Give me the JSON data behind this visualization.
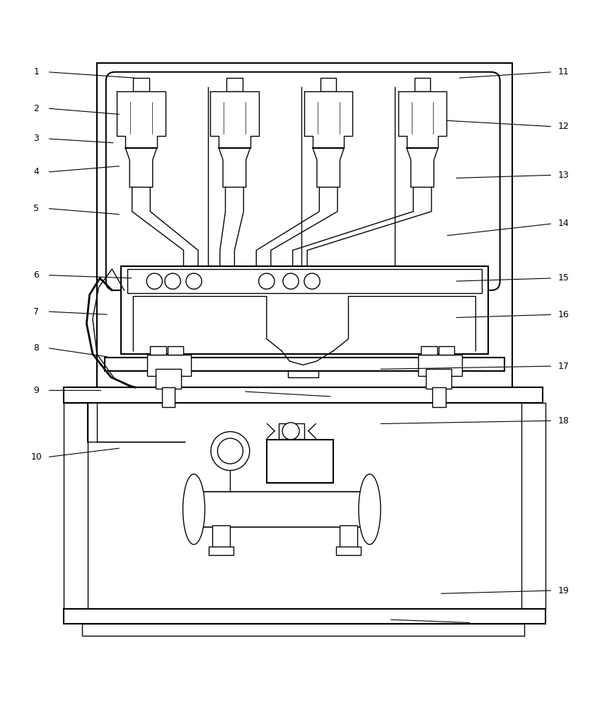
{
  "bg_color": "#ffffff",
  "line_color": "#000000",
  "fig_width": 8.65,
  "fig_height": 10.0,
  "label_positions": {
    "1": [
      0.055,
      0.965,
      0.22,
      0.955
    ],
    "2": [
      0.055,
      0.905,
      0.195,
      0.895
    ],
    "3": [
      0.055,
      0.855,
      0.185,
      0.848
    ],
    "4": [
      0.055,
      0.8,
      0.195,
      0.81
    ],
    "5": [
      0.055,
      0.74,
      0.195,
      0.73
    ],
    "6": [
      0.055,
      0.63,
      0.215,
      0.625
    ],
    "7": [
      0.055,
      0.57,
      0.175,
      0.565
    ],
    "8": [
      0.055,
      0.51,
      0.175,
      0.495
    ],
    "9": [
      0.055,
      0.44,
      0.165,
      0.44
    ],
    "10": [
      0.055,
      0.33,
      0.195,
      0.345
    ],
    "11": [
      0.925,
      0.965,
      0.75,
      0.955
    ],
    "12": [
      0.925,
      0.875,
      0.73,
      0.885
    ],
    "13": [
      0.925,
      0.795,
      0.745,
      0.79
    ],
    "14": [
      0.925,
      0.715,
      0.73,
      0.695
    ],
    "15": [
      0.925,
      0.625,
      0.745,
      0.62
    ],
    "16": [
      0.925,
      0.565,
      0.745,
      0.56
    ],
    "17": [
      0.925,
      0.48,
      0.62,
      0.475
    ],
    "18": [
      0.925,
      0.39,
      0.62,
      0.385
    ],
    "19": [
      0.925,
      0.11,
      0.72,
      0.105
    ]
  }
}
